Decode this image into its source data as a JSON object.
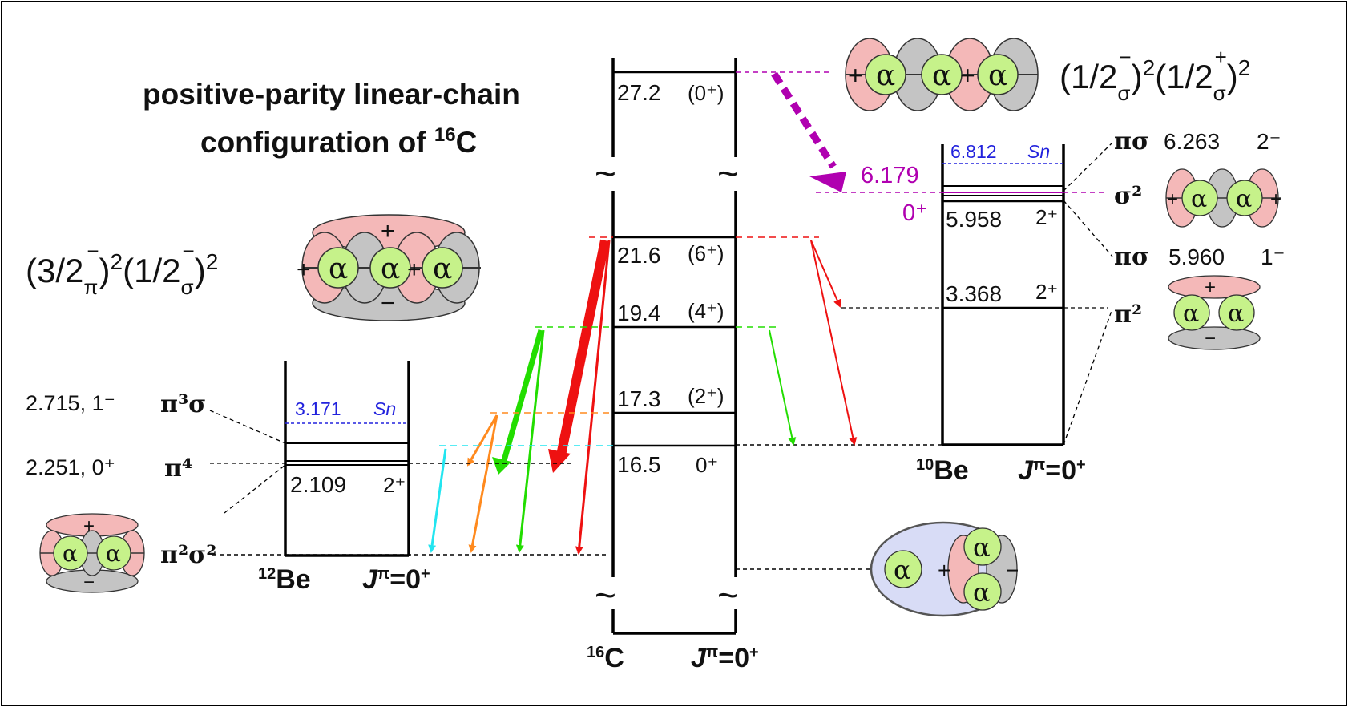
{
  "title": {
    "line1": "positive-parity linear-chain",
    "line2": "configuration of ",
    "line2_sup": "16",
    "line2_end": "C"
  },
  "configs": {
    "c16_main": "(1/2σ⁻)²(1/2σ⁺)²",
    "c16_left": "(3/2π⁻)²(1/2σ⁻)²"
  },
  "c16": {
    "nucleus_mass": "16",
    "nucleus": "C",
    "jpi": "J",
    "jpi_sup": "π",
    "jpi_val": "=0",
    "jpi_val_sup": "+",
    "levels": [
      {
        "energy": "27.2",
        "spin": "(0⁺)"
      },
      {
        "energy": "21.6",
        "spin": "(6⁺)"
      },
      {
        "energy": "19.4",
        "spin": "(4⁺)"
      },
      {
        "energy": "17.3",
        "spin": "(2⁺)"
      },
      {
        "energy": "16.5",
        "spin": "0⁺"
      }
    ],
    "break_symbol": "~"
  },
  "be12": {
    "nucleus_mass": "12",
    "nucleus": "Be",
    "jpi": "J",
    "jpi_sup": "π",
    "jpi_val": "=0",
    "jpi_val_sup": "+",
    "sn_value": "3.171",
    "sn_label": "Sn",
    "level_energy": "2.109",
    "level_spin": "2⁺",
    "side_states": [
      {
        "label": "2.715, 1⁻",
        "config": "π³σ"
      },
      {
        "label": "2.251, 0⁺",
        "config": "π⁴"
      },
      {
        "label": "",
        "config": "π²σ²"
      }
    ]
  },
  "be10": {
    "nucleus_mass": "10",
    "nucleus": "Be",
    "jpi": "J",
    "jpi_sup": "π",
    "jpi_val": "=0",
    "jpi_val_sup": "+",
    "sn_value": "6.812",
    "sn_label": "Sn",
    "target_energy": "6.179",
    "target_spin": "0⁺",
    "levels": [
      {
        "energy": "5.958",
        "spin": "2⁺"
      },
      {
        "energy": "3.368",
        "spin": "2⁺"
      }
    ],
    "side_states": [
      {
        "config": "πσ",
        "energy": "6.263",
        "spin": "2⁻"
      },
      {
        "config": "σ²",
        "energy": "",
        "spin": ""
      },
      {
        "config": "πσ",
        "energy": "5.960",
        "spin": "1⁻"
      },
      {
        "config": "π²",
        "energy": "",
        "spin": ""
      }
    ]
  },
  "cluster": {
    "alpha": "α",
    "plus": "+",
    "minus": "−"
  },
  "colors": {
    "magenta": "#b000b0",
    "red": "#ee1111",
    "green": "#22dd00",
    "orange": "#ff8a1e",
    "cyan": "#22e5f0",
    "blue": "#2222dd",
    "alpha_fill": "#c6f28a",
    "pink_fill": "#f4b8b8",
    "gray_fill": "#c4c4c4",
    "ellipse_fill": "#d8dcf6"
  }
}
